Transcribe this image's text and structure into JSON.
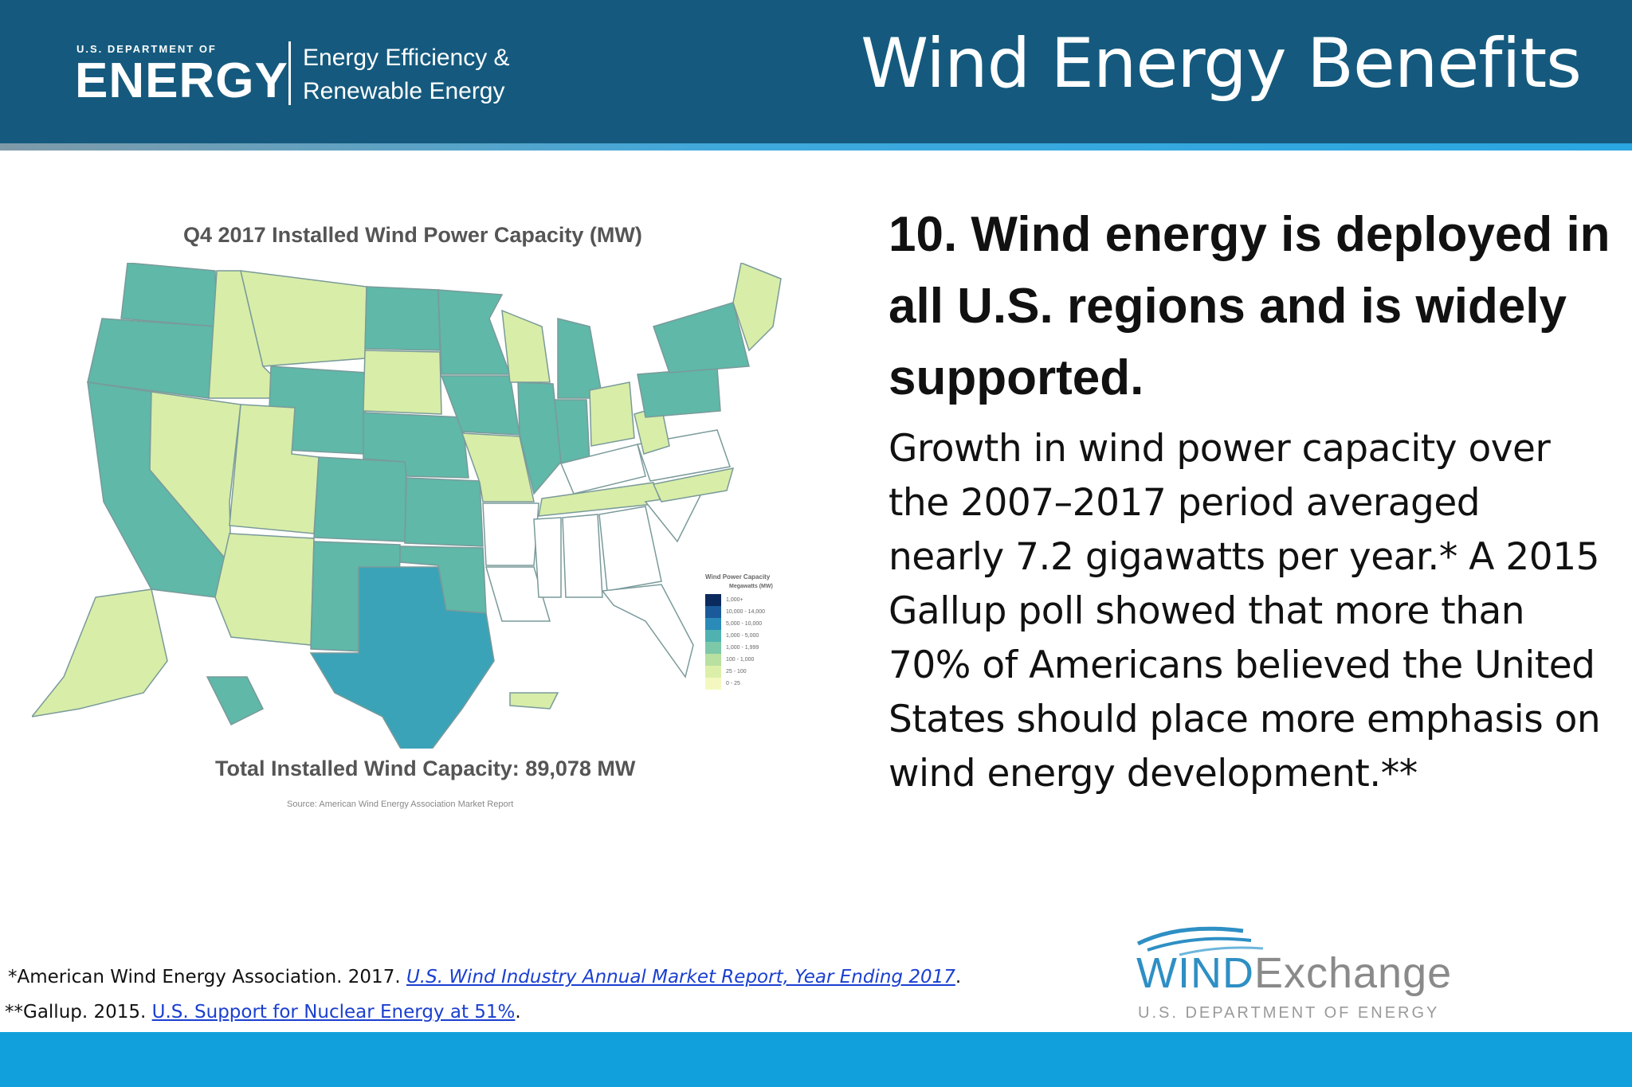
{
  "header": {
    "agency_small": "U.S. DEPARTMENT OF",
    "agency_big": "ENERGY",
    "office_line1": "Energy Efficiency &",
    "office_line2": "Renewable Energy",
    "slide_title": "Wind Energy Benefits"
  },
  "map": {
    "title": "Q4 2017 Installed Wind Power Capacity (MW)",
    "total": "Total Installed Wind Capacity: 89,078 MW",
    "source": "Source: American Wind Energy Association Market Report",
    "legend_title": "Wind Power Capacity",
    "legend_subtitle": "Megawatts (MW)",
    "legend": [
      {
        "label": "1,000+",
        "color": "#0b2a5e"
      },
      {
        "label": "10,000 - 14,000",
        "color": "#1a5a9a"
      },
      {
        "label": "5,000 - 10,000",
        "color": "#2a8ab8"
      },
      {
        "label": "1,000 - 5,000",
        "color": "#4fb2b0"
      },
      {
        "label": "1,000 - 1,999",
        "color": "#7cc8a8"
      },
      {
        "label": "100 - 1,000",
        "color": "#b8e0a0"
      },
      {
        "label": "25 - 100",
        "color": "#dcefa8"
      },
      {
        "label": "0 - 25",
        "color": "#f4f8c0"
      }
    ],
    "colors": {
      "teal": "#5fb8a8",
      "light": "#d8eda8",
      "texas": "#3aa3b8",
      "empty": "#ffffff",
      "border": "#7a9a9a"
    }
  },
  "content": {
    "heading": "10. Wind energy is deployed in all U.S. regions and is widely supported.",
    "body": "Growth in wind power capacity over the 2007–2017 period averaged nearly 7.2 gigawatts per year.* A 2015 Gallup poll showed that more than 70% of Americans believed the United States should place more emphasis on wind energy development.**"
  },
  "footnotes": {
    "fn1_prefix": "*American Wind Energy Association. 2017. ",
    "fn1_link": "U.S. Wind Industry Annual Market Report, Year Ending 2017",
    "fn1_suffix": ".",
    "fn2_prefix": "**Gallup. 2015. ",
    "fn2_link": "U.S. Support for Nuclear Energy at 51%",
    "fn2_suffix": "."
  },
  "logo": {
    "wind": "WIND",
    "exchange": "Exchange",
    "subline": "U.S. DEPARTMENT OF ENERGY"
  }
}
